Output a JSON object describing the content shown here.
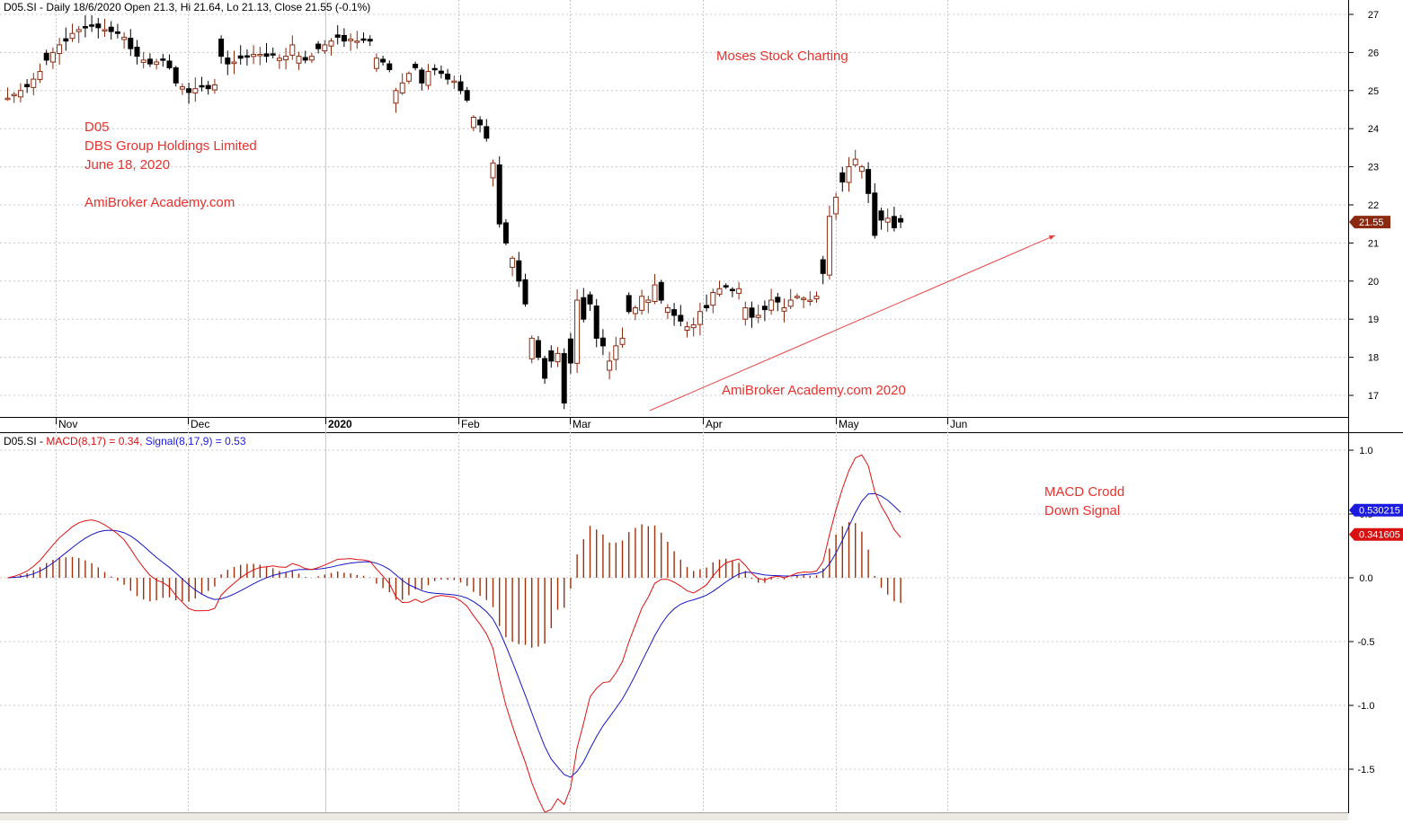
{
  "price_pane": {
    "header": "D05.SI - Daily 18/6/2020 Open 21.3, Hi 21.64, Lo 21.13, Close 21.55 (-0.1%)",
    "last_price_label": "21.55",
    "annotations": {
      "title_mark": "Moses Stock Charting",
      "symbol": "D05",
      "company": "DBS Group Holdings Limited",
      "date": "June 18, 2020",
      "site": "AmiBroker Academy.com",
      "watermark": "AmiBroker Academy.com  2020"
    }
  },
  "macd_pane": {
    "header_symbol": "D05.SI - ",
    "header_macd": "MACD(8,17) = 0.34, ",
    "header_signal": "Signal(8,17,9) = 0.53",
    "signal_label": "0.530215",
    "macd_label": "0.341605",
    "annotation_line1": "MACD Crodd",
    "annotation_line2": "Down Signal"
  },
  "colors": {
    "up_candle": "#ffffff",
    "up_outline": "#8b2a10",
    "down_candle": "#000000",
    "macd_line": "#e01010",
    "signal_line": "#1515c8",
    "histogram": "#a0300a",
    "annotation": "#e8322d",
    "trendline": "#e84040",
    "price_tag": "#8b2a10",
    "signal_tag": "#1a1ae0",
    "macd_tag": "#d81010"
  },
  "chart_data": [
    {
      "type": "candlestick",
      "x_labels": [
        "Nov",
        "Dec",
        "2020",
        "Feb",
        "Mar",
        "Apr",
        "May",
        "Jun"
      ],
      "ylim": [
        16.5,
        27.3
      ],
      "y_ticks": [
        "27",
        "26",
        "25",
        "24",
        "23",
        "22",
        "21",
        "20",
        "19",
        "18",
        "17"
      ],
      "y_tick_values": [
        27,
        26,
        25,
        24,
        23,
        22,
        21,
        20,
        19,
        18,
        17
      ],
      "last_close": 21.55,
      "trendline": {
        "x": [
          "2020-03-19",
          "2020-06-30"
        ],
        "y": [
          16.6,
          21.2
        ]
      },
      "closes": [
        24.8,
        24.9,
        25.0,
        25.1,
        25.3,
        25.5,
        25.8,
        26.0,
        26.2,
        26.3,
        26.5,
        26.6,
        26.65,
        26.7,
        26.65,
        26.6,
        26.55,
        26.5,
        26.4,
        26.1,
        25.9,
        25.8,
        25.7,
        25.75,
        25.8,
        25.6,
        25.2,
        25.1,
        24.95,
        25.05,
        25.1,
        25.05,
        25.15,
        25.9,
        25.7,
        25.75,
        25.85,
        25.9,
        25.95,
        25.95,
        25.9,
        25.95,
        25.85,
        25.9,
        26.2,
        25.9,
        25.8,
        25.9,
        26.1,
        26.2,
        26.3,
        26.4,
        26.3,
        26.35,
        26.3,
        26.35,
        26.3,
        25.85,
        25.75,
        25.55,
        25.0,
        25.2,
        25.45,
        25.6,
        25.2,
        25.5,
        25.55,
        25.45,
        25.3,
        25.25,
        25.0,
        24.75,
        24.3,
        24.1,
        23.75,
        23.1,
        21.5,
        21.0,
        20.6,
        20.0,
        19.4,
        18.5,
        18.0,
        17.45,
        17.9,
        18.1,
        16.8,
        17.85,
        19.5,
        19.0,
        19.4,
        18.5,
        18.3,
        17.9,
        18.3,
        18.5,
        19.2,
        19.3,
        19.6,
        19.5,
        19.9,
        19.5,
        19.3,
        19.1,
        18.95,
        18.8,
        18.85,
        19.2,
        19.3,
        19.7,
        19.8,
        19.85,
        19.75,
        19.8,
        19.3,
        19.05,
        19.1,
        19.25,
        19.5,
        19.45,
        19.3,
        19.5,
        19.6,
        19.55,
        19.5,
        19.6,
        20.2,
        21.7,
        22.2,
        22.6,
        23.0,
        23.2,
        23.0,
        22.3,
        21.2,
        21.6,
        21.65,
        21.4,
        21.55
      ]
    },
    {
      "type": "line",
      "series": [
        {
          "name": "MACD(8,17)",
          "role": "macd"
        },
        {
          "name": "Signal(8,17,9)",
          "role": "signal"
        }
      ],
      "ylim": [
        -1.8,
        1.05
      ],
      "y_ticks": [
        "1.0",
        "0.5",
        "0.0",
        "-0.5",
        "-1.0",
        "-1.5"
      ],
      "y_tick_values": [
        1.0,
        0.5,
        0.0,
        -0.5,
        -1.0,
        -1.5
      ],
      "x_labels": [
        "Nov",
        "Dec",
        "2020",
        "Feb",
        "Mar",
        "Apr",
        "May",
        "Jun"
      ],
      "last_macd": 0.34,
      "last_signal": 0.53
    }
  ]
}
